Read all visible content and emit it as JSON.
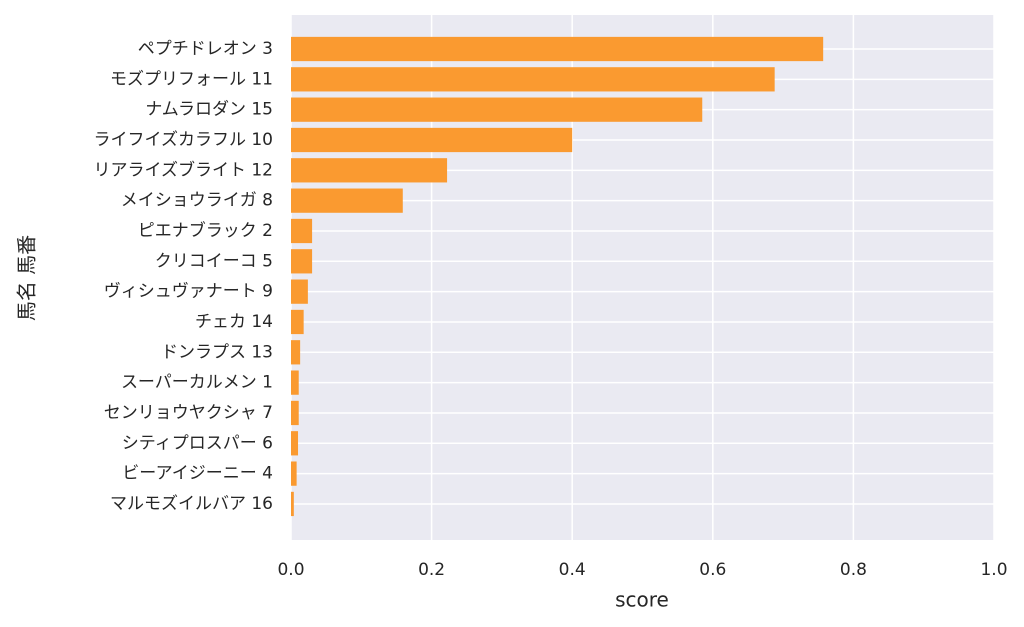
{
  "chart_data": {
    "type": "barh",
    "xlabel": "score",
    "ylabel": "馬名 馬番",
    "categories": [
      "ペプチドレオン 3",
      "モズプリフォール 11",
      "ナムラロダン 15",
      "ライフイズカラフル 10",
      "リアライズブライト 12",
      "メイショウライガ 8",
      "ピエナブラック 2",
      "クリコイーコ 5",
      "ヴィシュヴァナート 9",
      "チェカ 14",
      "ドンラプス 13",
      "スーパーカルメン 1",
      "センリョウヤクシャ 7",
      "シティプロスパー 6",
      "ビーアイジーニー 4",
      "マルモズイルバア 16"
    ],
    "values": [
      0.757,
      0.688,
      0.585,
      0.4,
      0.222,
      0.159,
      0.03,
      0.03,
      0.024,
      0.018,
      0.013,
      0.011,
      0.011,
      0.01,
      0.008,
      0.004
    ],
    "color": "#fa9a30",
    "xlim": [
      0,
      1
    ],
    "xticks": [
      {
        "value": 0,
        "label": "0.0"
      },
      0.2,
      0.4,
      0.6,
      0.8,
      {
        "value": 1,
        "label": "1.0"
      }
    ],
    "grid": true
  }
}
